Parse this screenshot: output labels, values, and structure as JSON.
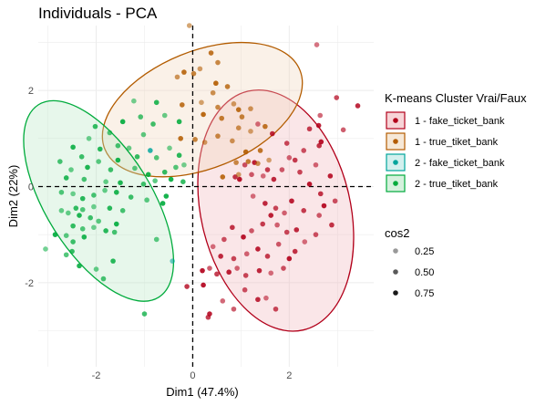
{
  "chart_data": {
    "type": "scatter",
    "title": "Individuals - PCA",
    "xlabel": "Dim1 (47.4%)",
    "ylabel": "Dim2 (22%)",
    "xlim": [
      -3.2,
      3.75
    ],
    "ylim": [
      -3.75,
      3.35
    ],
    "x_ticks": [
      -2,
      0,
      2
    ],
    "x_tick_labels": [
      "-2",
      "0",
      "2"
    ],
    "y_ticks": [
      -2,
      0,
      2
    ],
    "y_tick_labels": [
      "-2",
      "0",
      "2"
    ],
    "grid": true,
    "reference_lines": {
      "x": 0,
      "y": 0,
      "style": "dashed"
    },
    "legend_placement": "right",
    "legend": {
      "title": "K-means Cluster Vrai/Faux",
      "entries": [
        {
          "label": "1 - fake_ticket_bank",
          "color": "#b2001a",
          "fill": "#f2b8bd"
        },
        {
          "label": "1 - true_tiket_bank",
          "color": "#b35c00",
          "fill": "#f0d8bd"
        },
        {
          "label": "2 - fake_ticket_bank",
          "color": "#00a59c",
          "fill": "#b6e6e3"
        },
        {
          "label": "2 - true_tiket_bank",
          "color": "#00ab3c",
          "fill": "#b9e8c6"
        }
      ]
    },
    "size_legend": {
      "title": "cos2",
      "entries": [
        {
          "label": "0.25",
          "alpha": 0.4
        },
        {
          "label": "0.50",
          "alpha": 0.65
        },
        {
          "label": "0.75",
          "alpha": 0.9
        }
      ]
    },
    "ellipses": [
      {
        "series": 0,
        "cx": 1.72,
        "cy": -0.5,
        "rx": 1.55,
        "ry": 2.55,
        "angle_deg": -13
      },
      {
        "series": 1,
        "cx": 0.2,
        "cy": 1.6,
        "rx": 2.18,
        "ry": 1.22,
        "angle_deg": -22
      },
      {
        "series": 3,
        "cx": -1.95,
        "cy": -0.3,
        "rx": 2.35,
        "ry": 1.1,
        "angle_deg": 58
      }
    ],
    "series": [
      {
        "name": "1 - fake_ticket_bank",
        "points": [
          [
            2.57,
            2.95
          ],
          [
            3.42,
            1.68
          ],
          [
            2.98,
            1.85
          ],
          [
            2.64,
            1.48
          ],
          [
            2.61,
            1.27
          ],
          [
            2.42,
            1.2
          ],
          [
            3.12,
            1.18
          ],
          [
            2.66,
            0.93
          ],
          [
            2.62,
            0.85
          ],
          [
            2.3,
            0.75
          ],
          [
            1.35,
            1.3
          ],
          [
            1.65,
            1.1
          ],
          [
            1.95,
            0.9
          ],
          [
            2.0,
            0.6
          ],
          [
            1.28,
            0.5
          ],
          [
            1.55,
            0.35
          ],
          [
            1.22,
            0.25
          ],
          [
            0.97,
            0.15
          ],
          [
            0.88,
            0.2
          ],
          [
            1.08,
            0.45
          ],
          [
            1.46,
            0.22
          ],
          [
            1.68,
            0.15
          ],
          [
            2.22,
            0.3
          ],
          [
            2.55,
            0.45
          ],
          [
            2.85,
            0.22
          ],
          [
            2.12,
            0.55
          ],
          [
            1.85,
            0.35
          ],
          [
            2.42,
            0.05
          ],
          [
            2.65,
            -0.15
          ],
          [
            2.95,
            -0.3
          ],
          [
            1.25,
            -0.2
          ],
          [
            1.5,
            -0.35
          ],
          [
            1.72,
            -0.45
          ],
          [
            1.9,
            -0.55
          ],
          [
            2.05,
            -0.3
          ],
          [
            2.3,
            -0.5
          ],
          [
            2.62,
            -0.6
          ],
          [
            2.72,
            -0.4
          ],
          [
            2.88,
            -0.8
          ],
          [
            2.55,
            -1.0
          ],
          [
            2.32,
            -1.15
          ],
          [
            2.15,
            -0.9
          ],
          [
            1.95,
            -0.95
          ],
          [
            1.75,
            -0.8
          ],
          [
            1.62,
            -0.6
          ],
          [
            1.45,
            -0.78
          ],
          [
            1.22,
            -0.92
          ],
          [
            1.05,
            -1.05
          ],
          [
            0.82,
            -0.85
          ],
          [
            0.65,
            -1.1
          ],
          [
            0.42,
            -1.25
          ],
          [
            0.58,
            -1.45
          ],
          [
            0.85,
            -1.5
          ],
          [
            1.12,
            -1.4
          ],
          [
            1.35,
            -1.3
          ],
          [
            1.55,
            -1.45
          ],
          [
            1.78,
            -1.2
          ],
          [
            2.0,
            -1.5
          ],
          [
            2.12,
            -1.35
          ],
          [
            1.88,
            -1.7
          ],
          [
            1.62,
            -1.8
          ],
          [
            1.38,
            -1.75
          ],
          [
            1.1,
            -1.85
          ],
          [
            0.92,
            -1.7
          ],
          [
            0.75,
            -1.78
          ],
          [
            0.5,
            -1.82
          ],
          [
            0.35,
            -1.7
          ],
          [
            0.2,
            -1.75
          ],
          [
            -0.12,
            -2.08
          ],
          [
            1.08,
            -2.15
          ],
          [
            1.52,
            -2.32
          ],
          [
            1.35,
            -2.35
          ],
          [
            1.72,
            -2.55
          ],
          [
            0.62,
            -2.38
          ],
          [
            0.35,
            -2.65
          ],
          [
            0.32,
            -2.72
          ],
          [
            0.85,
            -2.55
          ],
          [
            0.22,
            -2.05
          ]
        ]
      },
      {
        "name": "1 - true_tiket_bank",
        "points": [
          [
            -0.07,
            3.35
          ],
          [
            0.38,
            2.78
          ],
          [
            0.52,
            2.58
          ],
          [
            0.15,
            2.45
          ],
          [
            -0.18,
            2.38
          ],
          [
            0.02,
            2.35
          ],
          [
            -0.32,
            2.28
          ],
          [
            0.48,
            2.15
          ],
          [
            0.72,
            2.08
          ],
          [
            0.42,
            1.95
          ],
          [
            0.18,
            1.75
          ],
          [
            -0.22,
            1.7
          ],
          [
            0.52,
            1.65
          ],
          [
            0.85,
            1.72
          ],
          [
            0.95,
            1.6
          ],
          [
            1.02,
            1.45
          ],
          [
            1.2,
            1.62
          ],
          [
            0.22,
            1.5
          ],
          [
            0.6,
            1.42
          ],
          [
            0.95,
            1.22
          ],
          [
            1.2,
            1.15
          ],
          [
            1.5,
            1.25
          ],
          [
            0.52,
            1.05
          ],
          [
            0.25,
            0.92
          ],
          [
            -0.25,
            1.0
          ],
          [
            0.05,
            0.98
          ],
          [
            0.82,
            0.95
          ],
          [
            1.1,
            0.72
          ],
          [
            1.15,
            0.52
          ],
          [
            1.35,
            0.48
          ],
          [
            1.58,
            0.55
          ],
          [
            1.4,
            0.75
          ],
          [
            0.9,
            0.5
          ],
          [
            0.95,
            0.25
          ],
          [
            0.62,
            0.2
          ]
        ]
      },
      {
        "name": "2 - fake_ticket_bank",
        "points": [
          [
            -0.42,
            -1.55
          ],
          [
            -0.88,
            0.75
          ]
        ]
      },
      {
        "name": "2 - true_tiket_bank",
        "points": [
          [
            -1.22,
            1.78
          ],
          [
            -0.75,
            1.75
          ],
          [
            -1.08,
            1.45
          ],
          [
            -0.58,
            1.48
          ],
          [
            -0.28,
            1.35
          ],
          [
            -0.82,
            1.3
          ],
          [
            -1.02,
            1.08
          ],
          [
            -1.45,
            1.35
          ],
          [
            -2.02,
            1.25
          ],
          [
            -1.72,
            1.12
          ],
          [
            -2.15,
            1.0
          ],
          [
            -1.92,
            0.78
          ],
          [
            -1.55,
            0.85
          ],
          [
            -1.32,
            0.8
          ],
          [
            -2.48,
            0.82
          ],
          [
            -2.3,
            0.62
          ],
          [
            -1.95,
            0.52
          ],
          [
            -1.55,
            0.55
          ],
          [
            -1.15,
            0.62
          ],
          [
            -0.75,
            0.6
          ],
          [
            -0.48,
            0.8
          ],
          [
            -0.28,
            0.65
          ],
          [
            -2.75,
            0.52
          ],
          [
            -2.52,
            0.35
          ],
          [
            -2.18,
            0.4
          ],
          [
            -1.7,
            0.35
          ],
          [
            -1.2,
            0.38
          ],
          [
            -0.92,
            0.25
          ],
          [
            -0.58,
            0.3
          ],
          [
            -0.35,
            0.4
          ],
          [
            -0.18,
            0.45
          ],
          [
            -2.62,
            0.18
          ],
          [
            -2.25,
            0.15
          ],
          [
            -1.8,
            0.1
          ],
          [
            -1.5,
            0.08
          ],
          [
            -1.02,
            0.05
          ],
          [
            -0.78,
            0.12
          ],
          [
            -0.45,
            0.15
          ],
          [
            -0.2,
            0.1
          ],
          [
            -2.72,
            -0.12
          ],
          [
            -2.48,
            -0.15
          ],
          [
            -2.28,
            -0.25
          ],
          [
            -2.05,
            -0.18
          ],
          [
            -1.82,
            -0.08
          ],
          [
            -1.58,
            -0.12
          ],
          [
            -1.28,
            -0.22
          ],
          [
            -0.95,
            -0.28
          ],
          [
            -0.62,
            -0.35
          ],
          [
            -2.42,
            -0.45
          ],
          [
            -2.28,
            -0.48
          ],
          [
            -2.05,
            -0.42
          ],
          [
            -1.72,
            -0.45
          ],
          [
            -1.45,
            -0.5
          ],
          [
            -2.58,
            -0.55
          ],
          [
            -2.35,
            -0.6
          ],
          [
            -2.12,
            -0.65
          ],
          [
            -1.95,
            -0.72
          ],
          [
            -1.58,
            -0.78
          ],
          [
            -2.48,
            -0.82
          ],
          [
            -2.28,
            -0.88
          ],
          [
            -2.05,
            -0.85
          ],
          [
            -1.8,
            -0.92
          ],
          [
            -1.62,
            -0.95
          ],
          [
            -2.72,
            -0.5
          ],
          [
            -2.25,
            -1.05
          ],
          [
            -2.48,
            -1.15
          ],
          [
            -2.62,
            -1.02
          ],
          [
            -2.85,
            -1.0
          ],
          [
            -2.5,
            -1.35
          ],
          [
            -2.62,
            -1.42
          ],
          [
            -3.05,
            -1.3
          ],
          [
            -1.65,
            -1.55
          ],
          [
            -1.85,
            -1.92
          ],
          [
            -2.0,
            -1.72
          ],
          [
            -2.35,
            -1.65
          ],
          [
            -1.0,
            -2.65
          ],
          [
            -0.75,
            -1.1
          ],
          [
            -0.55,
            -0.2
          ]
        ]
      }
    ]
  }
}
